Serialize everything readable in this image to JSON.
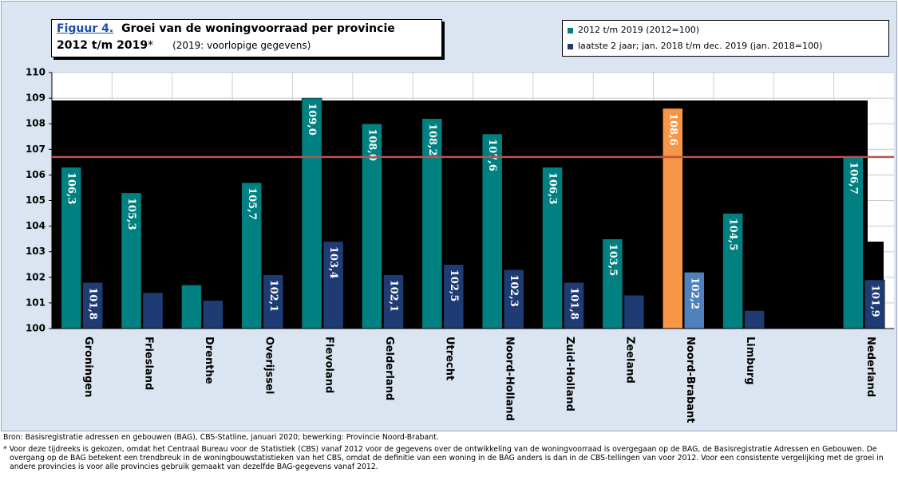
{
  "chart_data": {
    "type": "bar",
    "title_label": "Figuur 4.",
    "title": "Groei van de woningvoorraad per provincie",
    "title_period": "2012 t/m 2019",
    "title_marker": "*",
    "subtitle": "(2019: voorlopige gegevens)",
    "categories": [
      "Groningen",
      "Friesland",
      "Drenthe",
      "Overijssel",
      "Flevoland",
      "Gelderland",
      "Utrecht",
      "Noord-Holland",
      "Zuid-Holland",
      "Zeeland",
      "Noord-Brabant",
      "Limburg",
      null,
      "Nederland"
    ],
    "series": [
      {
        "name": "2012 t/m 2019  (2012=100)",
        "color": "#008080",
        "colors": [
          "#008080",
          "#008080",
          "#008080",
          "#008080",
          "#008080",
          "#008080",
          "#008080",
          "#008080",
          "#008080",
          "#008080",
          "#f79646",
          "#008080",
          "#008080",
          "#008080"
        ],
        "values": [
          106.3,
          105.3,
          101.7,
          105.7,
          109.0,
          108.0,
          108.2,
          107.6,
          106.3,
          103.5,
          108.6,
          104.5,
          null,
          106.7
        ],
        "value_labels": [
          "106,3",
          "105,3",
          null,
          "105,7",
          "109,0",
          "108,0",
          "108,2",
          "107,6",
          "106,3",
          "103,5",
          "108,6",
          "104,5",
          null,
          "106,7"
        ]
      },
      {
        "name": "laatste 2 jaar; jan. 2018 t/m dec. 2019  (jan. 2018=100)",
        "color": "#1f3b73",
        "colors": [
          "#1f3b73",
          "#1f3b73",
          "#1f3b73",
          "#1f3b73",
          "#1f3b73",
          "#1f3b73",
          "#1f3b73",
          "#1f3b73",
          "#1f3b73",
          "#1f3b73",
          "#4f81bd",
          "#1f3b73",
          "#1f3b73",
          "#1f3b73"
        ],
        "values": [
          101.8,
          101.4,
          101.1,
          102.1,
          103.4,
          102.1,
          102.5,
          102.3,
          101.8,
          101.3,
          102.2,
          100.7,
          null,
          101.9
        ],
        "value_labels": [
          "101,8",
          null,
          null,
          "102,1",
          "103,4",
          "102,1",
          "102,5",
          "102,3",
          "101,8",
          null,
          "102,2",
          null,
          null,
          "101,9"
        ]
      }
    ],
    "reference_line": {
      "value": 106.7,
      "color": "#c0504d"
    },
    "ylim": [
      100,
      110
    ],
    "yticks": [
      100,
      101,
      102,
      103,
      104,
      105,
      106,
      107,
      108,
      109,
      110
    ],
    "grid": true,
    "source": "Bron: Basisregistratie adressen en gebouwen (BAG), CBS-Statline, januari 2020; bewerking: Provincie Noord-Brabant.",
    "note": "* Voor deze tijdreeks is gekozen, omdat het Centraal Bureau voor de Statistiek (CBS) vanaf 2012 voor de gegevens over de ontwikkeling van de woningvoorraad is overgegaan op de BAG, de Basisregistratie Adressen en Gebouwen. De overgang op de BAG betekent een trendbreuk in de woningbouwstatistieken van het CBS, omdat de definitie van een woning in de BAG anders is dan in de CBS-tellingen van voor 2012. Voor een consistente vergelijking met de groei in andere provincies is voor alle provincies gebruik gemaakt van dezelfde BAG-gegevens vanaf 2012."
  }
}
